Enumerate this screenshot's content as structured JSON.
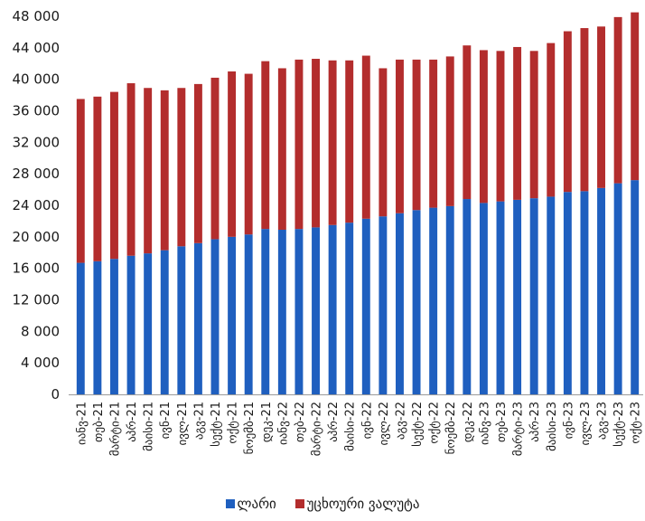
{
  "chart_data": {
    "type": "bar",
    "stacked": true,
    "categories": [
      "იანვ-21",
      "თებ-21",
      "მარტი-21",
      "აპრ-21",
      "მაისი-21",
      "ივნ-21",
      "ივლ-21",
      "აგვ-21",
      "სექტ-21",
      "ოქტ-21",
      "ნოემბ-21",
      "დეკ-21",
      "იანვ-22",
      "თებ-22",
      "მარტი-22",
      "აპრ-22",
      "მაისი-22",
      "ივნ-22",
      "ივლ-22",
      "აგვ-22",
      "სექტ-22",
      "ოქტ-22",
      "ნოემბ-22",
      "დეკ-22",
      "იანვ-23",
      "თებ-23",
      "მარტი-23",
      "აპრ-23",
      "მაისი-23",
      "ივნ-23",
      "ივლ-23",
      "აგვ-23",
      "სექტ-23",
      "ოქტ-23"
    ],
    "series": [
      {
        "name": "ლარი",
        "color": "#1f5fbf",
        "values": [
          16700,
          16900,
          17200,
          17600,
          17900,
          18300,
          18800,
          19200,
          19700,
          20000,
          20300,
          21000,
          20900,
          21000,
          21200,
          21500,
          21800,
          22300,
          22600,
          23000,
          23400,
          23700,
          23900,
          24800,
          24300,
          24500,
          24700,
          24900,
          25100,
          25700,
          25800,
          26200,
          26800,
          27200
        ]
      },
      {
        "name": "უცხოური ვალუტა",
        "color": "#b32d2d",
        "values": [
          20800,
          20900,
          21200,
          21900,
          21000,
          20300,
          20100,
          20200,
          20500,
          21000,
          20400,
          21300,
          20500,
          21500,
          21400,
          20900,
          20600,
          20700,
          18800,
          19500,
          19100,
          18800,
          19000,
          19500,
          19400,
          19100,
          19400,
          18700,
          19500,
          20400,
          20700,
          20500,
          21100,
          21300
        ]
      }
    ],
    "ylim": [
      0,
      48000
    ],
    "yticks": [
      "0",
      "4 000",
      "8 000",
      "12 000",
      "16 000",
      "20 000",
      "24 000",
      "28 000",
      "32 000",
      "36 000",
      "40 000",
      "44 000",
      "48 000"
    ],
    "legend_position": "bottom",
    "grid": false
  },
  "legend": {
    "items": [
      {
        "label": "ლარი",
        "color": "#1f5fbf"
      },
      {
        "label": "უცხოური ვალუტა",
        "color": "#b32d2d"
      }
    ]
  }
}
